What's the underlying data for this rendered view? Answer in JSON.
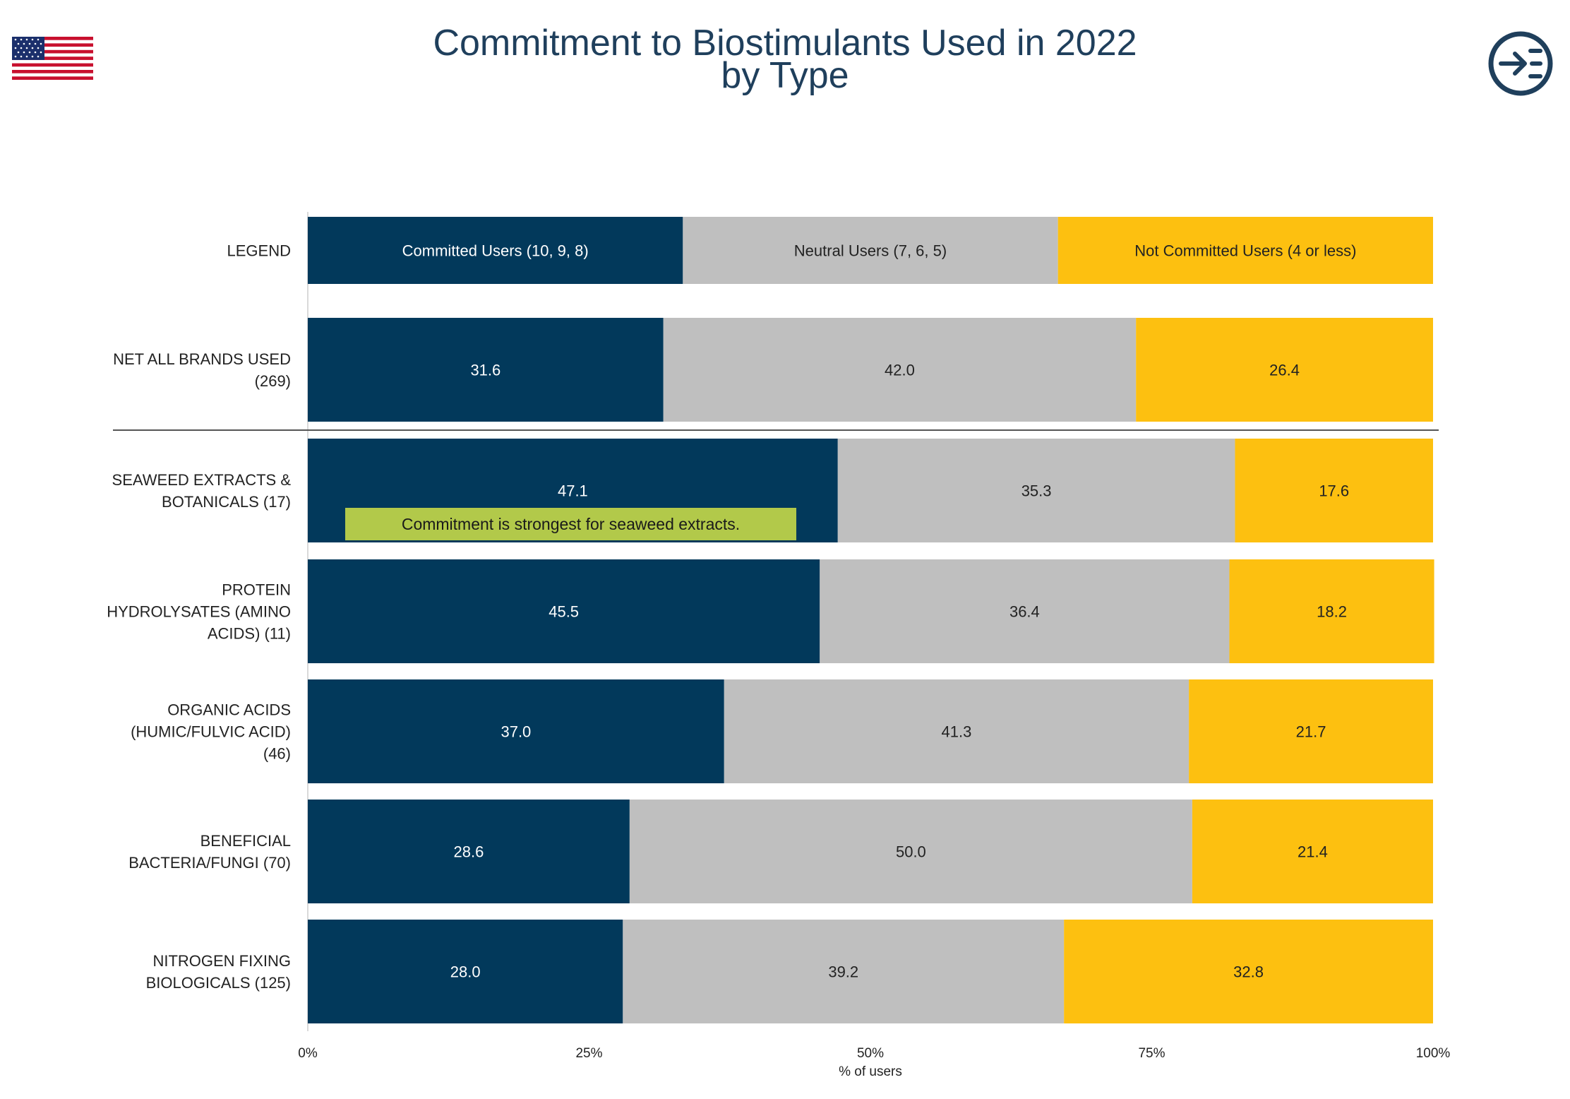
{
  "title": {
    "line1": "Commitment to Biostimulants Used in 2022",
    "line2": "by Type"
  },
  "icons": {
    "flag": "us-flag-icon",
    "nav": "arrow-list-icon"
  },
  "colors": {
    "committed": "#02395b",
    "neutral": "#bfbfbf",
    "not_committed": "#fdc010",
    "title": "#1f3f5c",
    "note_bg": "#b2c94a"
  },
  "chart_data": {
    "type": "bar",
    "orientation": "horizontal-stacked-100",
    "xlabel": "% of users",
    "xlim": [
      0,
      100
    ],
    "xticks": [
      "0%",
      "25%",
      "50%",
      "75%",
      "100%"
    ],
    "legend": {
      "label": "LEGEND",
      "entries": [
        "Committed Users (10, 9, 8)",
        "Neutral Users (7, 6, 5)",
        "Not Committed Users (4 or less)"
      ]
    },
    "categories": [
      [
        "NET ALL BRANDS USED",
        "(269)"
      ],
      [
        "SEAWEED EXTRACTS &",
        "BOTANICALS (17)"
      ],
      [
        "PROTEIN",
        "HYDROLYSATES (AMINO",
        "ACIDS) (11)"
      ],
      [
        "ORGANIC ACIDS",
        "(HUMIC/FULVIC ACID)",
        "(46)"
      ],
      [
        "BENEFICIAL",
        "BACTERIA/FUNGI (70)"
      ],
      [
        "NITROGEN FIXING",
        "BIOLOGICALS (125)"
      ]
    ],
    "series": [
      {
        "name": "Committed Users (10, 9, 8)",
        "values": [
          31.6,
          47.1,
          45.5,
          37.0,
          28.6,
          28.0
        ]
      },
      {
        "name": "Neutral Users (7, 6, 5)",
        "values": [
          42.0,
          35.3,
          36.4,
          41.3,
          50.0,
          39.2
        ]
      },
      {
        "name": "Not Committed Users (4 or less)",
        "values": [
          26.4,
          17.6,
          18.2,
          21.7,
          21.4,
          32.8
        ]
      }
    ],
    "annotation": "Commitment is strongest for seaweed extracts."
  }
}
